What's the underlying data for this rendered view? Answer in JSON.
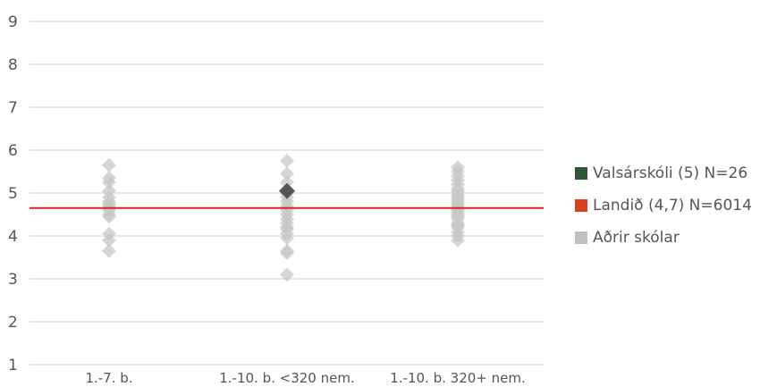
{
  "chart_data": {
    "type": "scatter",
    "title": "",
    "xlabel": "",
    "ylabel": "",
    "ylim": [
      1,
      9
    ],
    "yticks": [
      1,
      2,
      3,
      4,
      5,
      6,
      7,
      8,
      9
    ],
    "grid": true,
    "legend_position": "right",
    "categories": [
      "1.-7. b.",
      "1.-10. b. <320 nem.",
      "1.-10. b. 320+ nem."
    ],
    "reference_line": {
      "value": 4.65,
      "color": "#cc2a1e"
    },
    "series": [
      {
        "name": "Aðrir skólar",
        "color": "#c8c8c8",
        "marker": "diamond",
        "points": {
          "1.-7. b.": [
            3.65,
            3.9,
            4.05,
            4.45,
            4.5,
            4.6,
            4.65,
            4.7,
            4.75,
            4.8,
            4.9,
            5.05,
            5.25,
            5.35,
            5.65
          ],
          "1.-10. b. <320 nem.": [
            3.1,
            3.6,
            3.65,
            3.95,
            4.05,
            4.15,
            4.2,
            4.3,
            4.4,
            4.5,
            4.6,
            4.7,
            4.8,
            4.9,
            5.0,
            5.25,
            5.45,
            5.75
          ],
          "1.-10. b. 320+ nem.": [
            3.9,
            4.0,
            4.1,
            4.2,
            4.25,
            4.3,
            4.4,
            4.45,
            4.5,
            4.55,
            4.6,
            4.65,
            4.7,
            4.75,
            4.8,
            4.85,
            4.9,
            4.95,
            5.0,
            5.05,
            5.1,
            5.2,
            5.3,
            5.4,
            5.5,
            5.6
          ]
        }
      },
      {
        "name": "Valsárskóli (5) N=26",
        "color": "#2f5733",
        "marker": "diamond",
        "points": {
          "1.-10. b. <320 nem.": [
            5.05
          ]
        }
      }
    ],
    "legend": [
      {
        "label": "Valsárskóli (5) N=26",
        "color": "#2f5733"
      },
      {
        "label": "Landið (4,7) N=6014",
        "color": "#d9401c"
      },
      {
        "label": "Aðrir skólar",
        "color": "#c0c0c0"
      }
    ]
  }
}
